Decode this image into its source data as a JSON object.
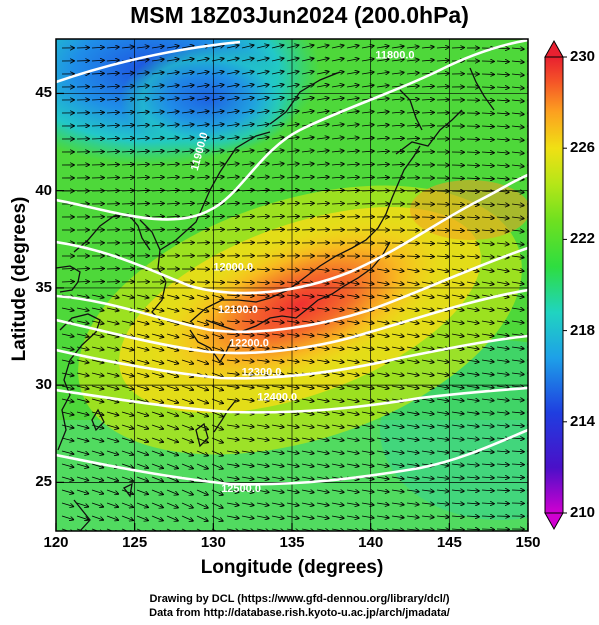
{
  "title": "MSM 18Z03Jun2024 (200.0hPa)",
  "xlabel": "Longitude (degrees)",
  "ylabel": "Latitude  (degrees)",
  "footer": {
    "line1": "Drawing by DCL (https://www.gfd-dennou.org/library/dcl/)",
    "line2": "Data from http://database.rish.kyoto-u.ac.jp/arch/jmadata/"
  },
  "x_ticks": [
    "120",
    "125",
    "130",
    "135",
    "140",
    "145",
    "150"
  ],
  "y_ticks": [
    "25",
    "30",
    "35",
    "40",
    "45"
  ],
  "colorbar": {
    "ticks": [
      "230",
      "226",
      "222",
      "218",
      "214",
      "210"
    ],
    "min": 210,
    "max": 230,
    "colors": [
      "#d000d0",
      "#4a10c8",
      "#1f3ee0",
      "#1ea0e8",
      "#20d4c0",
      "#2edd40",
      "#6ee020",
      "#b4e618",
      "#f0e014",
      "#fca020",
      "#f45028",
      "#e82030"
    ]
  },
  "contours": [
    {
      "label": "11800.0",
      "lon": 140.3,
      "lat": 46.8
    },
    {
      "label": "11900.0",
      "lon": 129.0,
      "lat": 41.0
    },
    {
      "label": "12000.0",
      "lon": 130.0,
      "lat": 35.9
    },
    {
      "label": "12100.0",
      "lon": 130.3,
      "lat": 33.7
    },
    {
      "label": "12200.0",
      "lon": 131.0,
      "lat": 32.0
    },
    {
      "label": "12300.0",
      "lon": 131.8,
      "lat": 30.5
    },
    {
      "label": "12400.0",
      "lon": 132.8,
      "lat": 29.2
    },
    {
      "label": "12500.0",
      "lon": 130.5,
      "lat": 24.5
    }
  ],
  "map": {
    "lon_range": [
      120,
      150
    ],
    "lat_range": [
      22.5,
      47.8
    ]
  }
}
